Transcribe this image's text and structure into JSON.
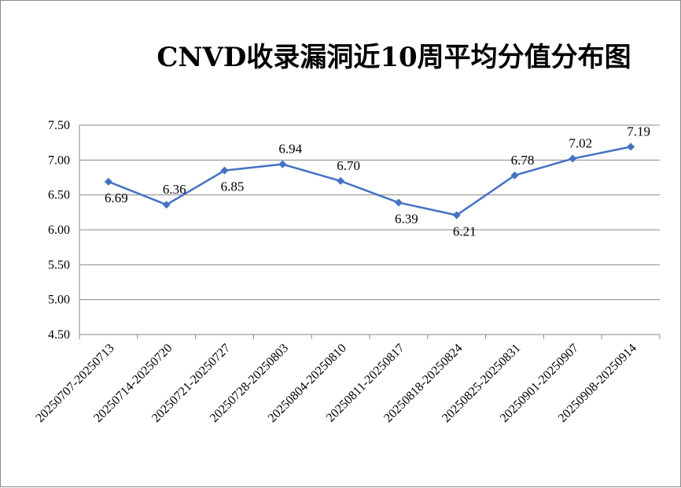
{
  "chart_data": {
    "type": "line",
    "title": "CNVD收录漏洞近10周平均分值分布图",
    "xlabel": "",
    "ylabel": "",
    "categories": [
      "20250707-20250713",
      "20250714-20250720",
      "20250721-20250727",
      "20250728-20250803",
      "20250804-20250810",
      "20250811-20250817",
      "20250818-20250824",
      "20250825-20250831",
      "20250901-20250907",
      "20250908-20250914"
    ],
    "series": [
      {
        "values": [
          6.69,
          6.36,
          6.85,
          6.94,
          6.7,
          6.39,
          6.21,
          6.78,
          7.02,
          7.19
        ],
        "data_labels": [
          "6.69",
          "6.36",
          "6.85",
          "6.94",
          "6.70",
          "6.39",
          "6.21",
          "6.78",
          "7.02",
          "7.19"
        ],
        "color": "#4472c4",
        "marker": "diamond"
      }
    ],
    "ylim": [
      4.5,
      7.5
    ],
    "yticks": [
      "7.50",
      "7.00",
      "6.50",
      "6.00",
      "5.50",
      "5.00",
      "4.50"
    ],
    "grid": true,
    "legend": "none",
    "gridline_color": "#888888"
  }
}
